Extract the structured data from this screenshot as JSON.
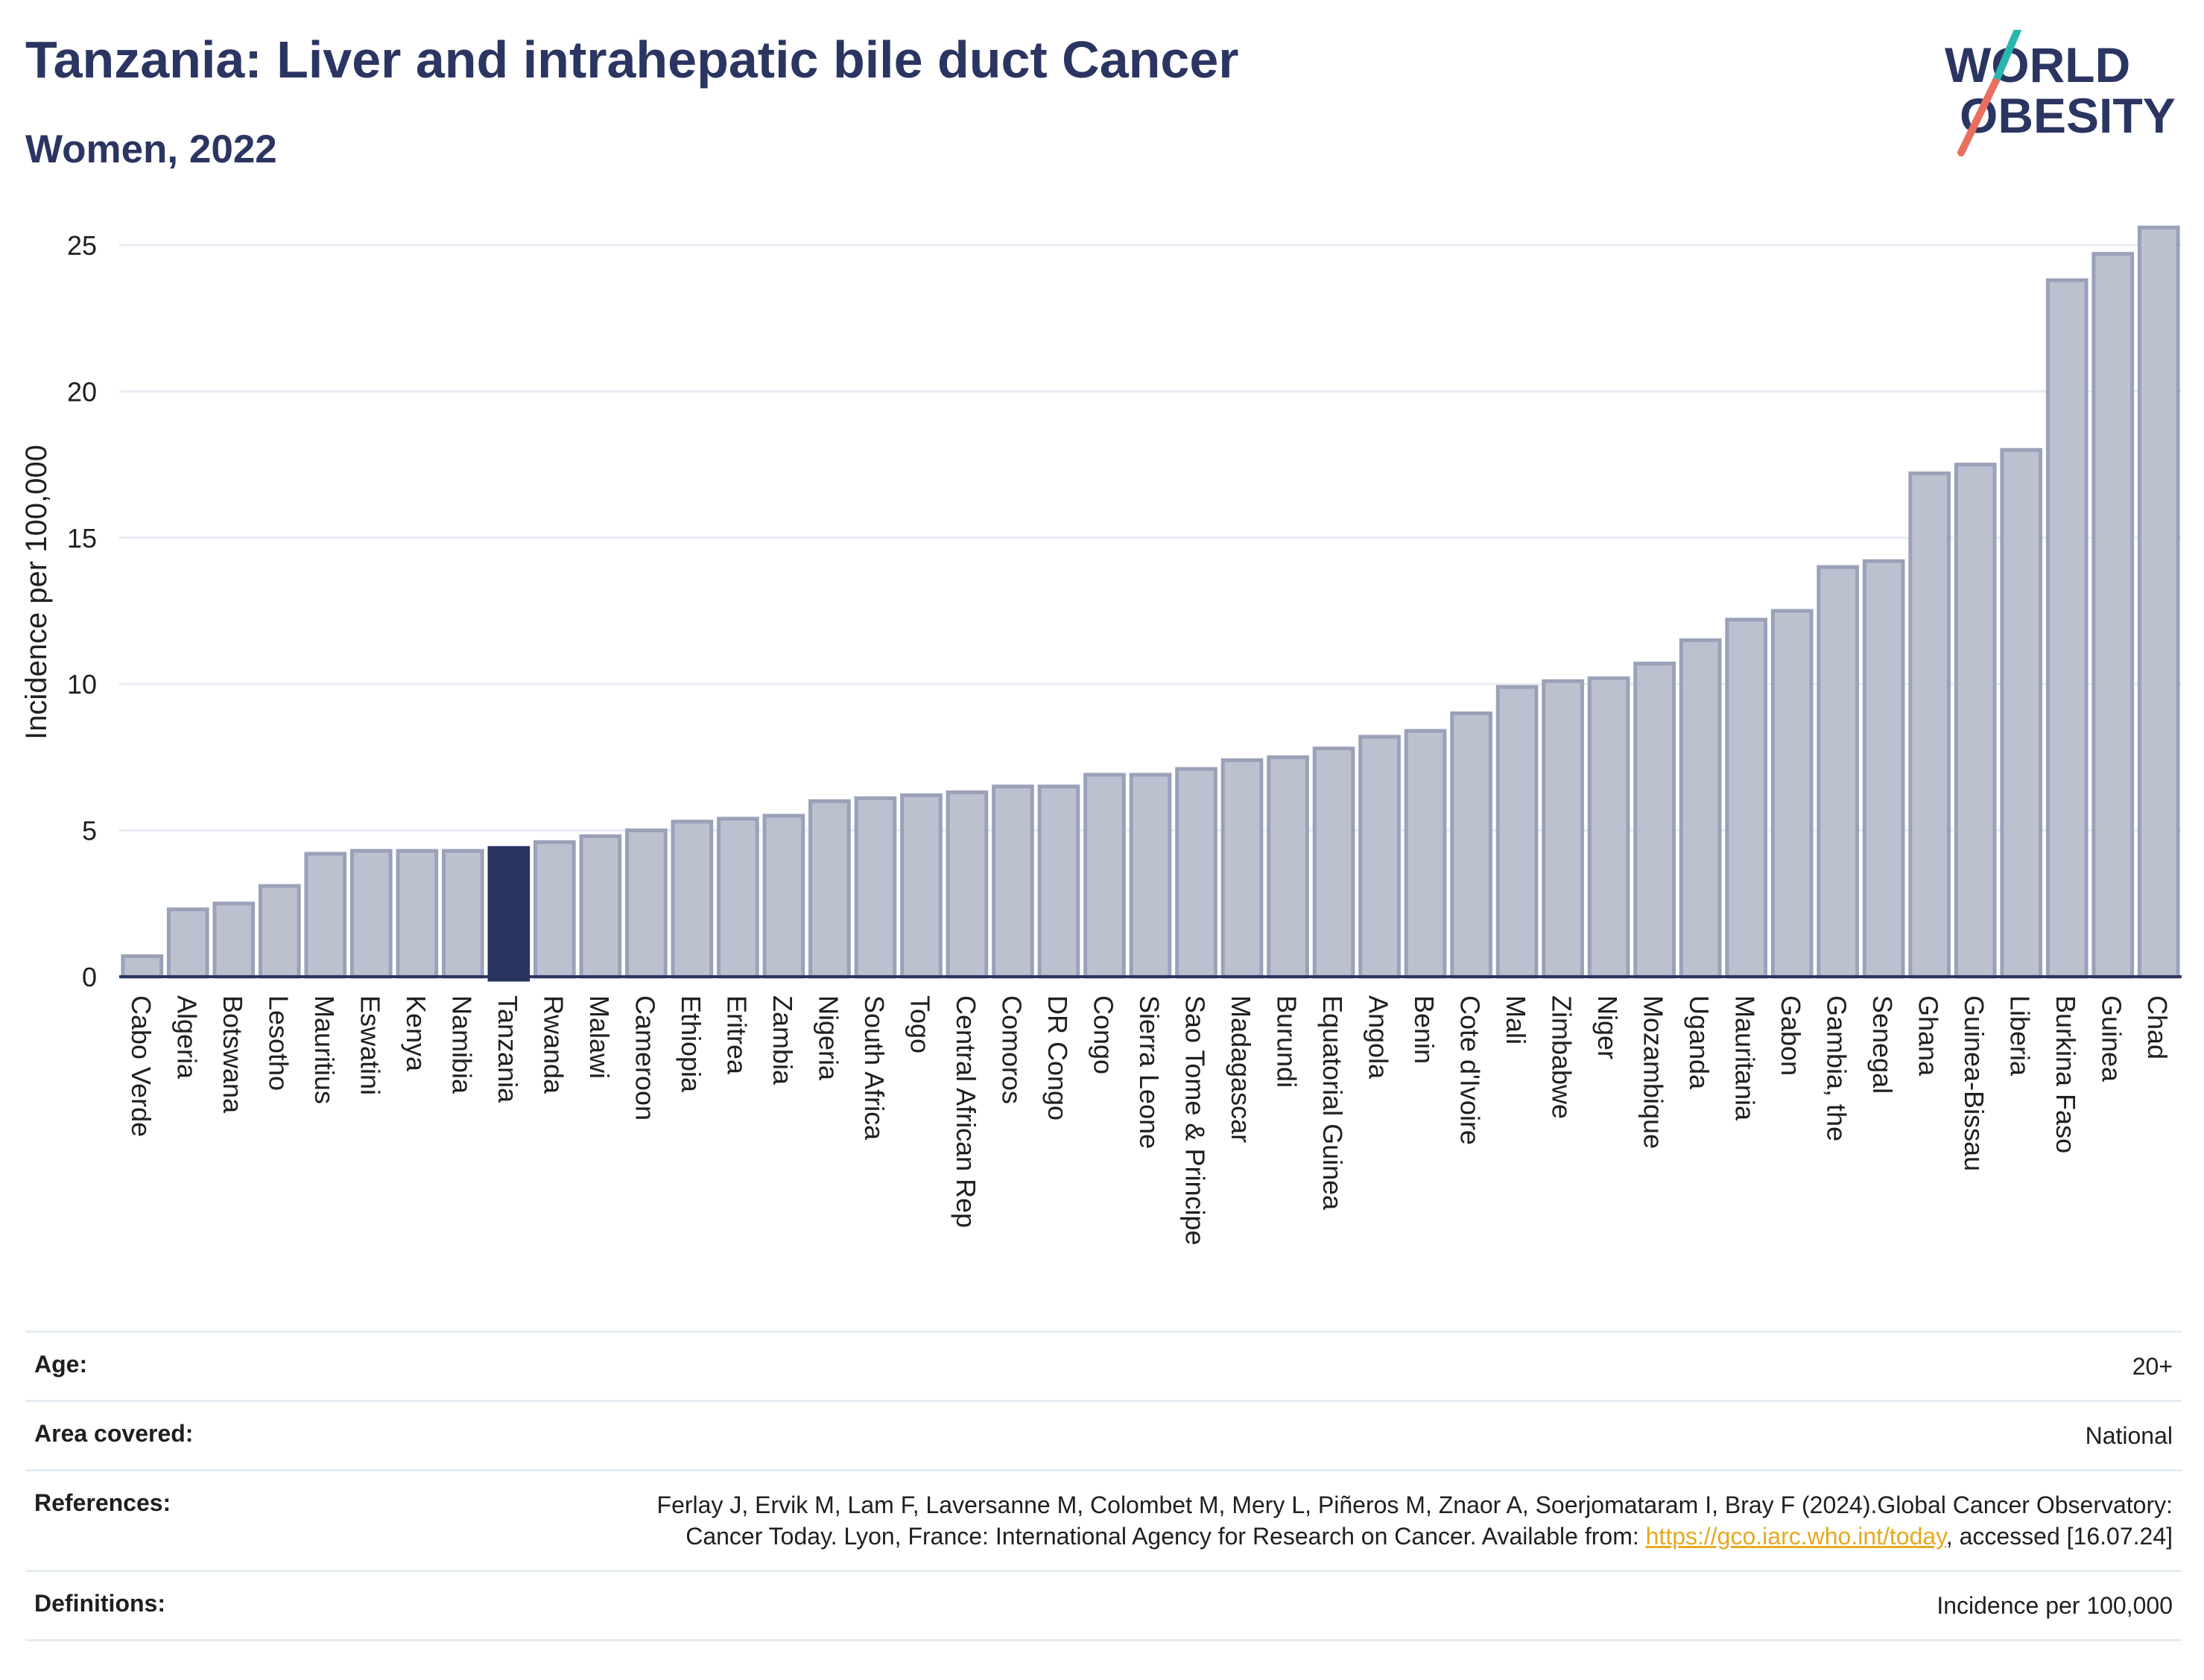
{
  "title": "Tanzania: Liver and intrahepatic bile duct Cancer",
  "subtitle": "Women, 2022",
  "logo": {
    "line1": "WORLD",
    "line2": "OBESITY"
  },
  "colors": {
    "bar": "#bcc1d0",
    "bar_edge": "#9aa1b8",
    "highlight": "#283360",
    "title": "#2b3561",
    "link": "#e6a91f"
  },
  "chart_data": {
    "type": "bar",
    "ylabel": "Incidence per 100,000",
    "ylim": [
      0,
      26.5
    ],
    "yticks": [
      0,
      5,
      10,
      15,
      20,
      25
    ],
    "highlight": "Tanzania",
    "categories": [
      "Cabo Verde",
      "Algeria",
      "Botswana",
      "Lesotho",
      "Mauritius",
      "Eswatini",
      "Kenya",
      "Namibia",
      "Tanzania",
      "Rwanda",
      "Malawi",
      "Cameroon",
      "Ethiopia",
      "Eritrea",
      "Zambia",
      "Nigeria",
      "South Africa",
      "Togo",
      "Central African Rep",
      "Comoros",
      "DR Congo",
      "Congo",
      "Sierra Leone",
      "Sao Tome & Principe",
      "Madagascar",
      "Burundi",
      "Equatorial Guinea",
      "Angola",
      "Benin",
      "Cote d'Ivoire",
      "Mali",
      "Zimbabwe",
      "Niger",
      "Mozambique",
      "Uganda",
      "Mauritania",
      "Gabon",
      "Gambia, the",
      "Senegal",
      "Ghana",
      "Guinea-Bissau",
      "Liberia",
      "Burkina Faso",
      "Guinea",
      "Chad"
    ],
    "values": [
      0.7,
      2.3,
      2.5,
      3.1,
      4.2,
      4.3,
      4.3,
      4.3,
      4.4,
      4.6,
      4.8,
      5.0,
      5.3,
      5.4,
      5.5,
      6.0,
      6.1,
      6.2,
      6.3,
      6.5,
      6.5,
      6.9,
      6.9,
      7.1,
      7.4,
      7.5,
      7.8,
      8.2,
      8.4,
      9.0,
      9.9,
      10.1,
      10.2,
      10.7,
      11.5,
      12.2,
      12.5,
      14.0,
      14.2,
      17.2,
      17.5,
      18.0,
      23.8,
      24.7,
      25.6
    ]
  },
  "info": {
    "age_label": "Age:",
    "age_value": "20+",
    "area_label": "Area covered:",
    "area_value": "National",
    "ref_label": "References:",
    "ref_text1": "Ferlay J, Ervik M, Lam F, Laversanne M, Colombet M, Mery L, Piñeros M, Znaor A, Soerjomataram I, Bray F (2024).Global Cancer Observatory: Cancer Today. Lyon, France: International Agency for Research on Cancer. Available from: ",
    "ref_link": "https://gco.iarc.who.int/today",
    "ref_text2": ", accessed [16.07.24]",
    "def_label": "Definitions:",
    "def_value": "Incidence per 100,000"
  }
}
